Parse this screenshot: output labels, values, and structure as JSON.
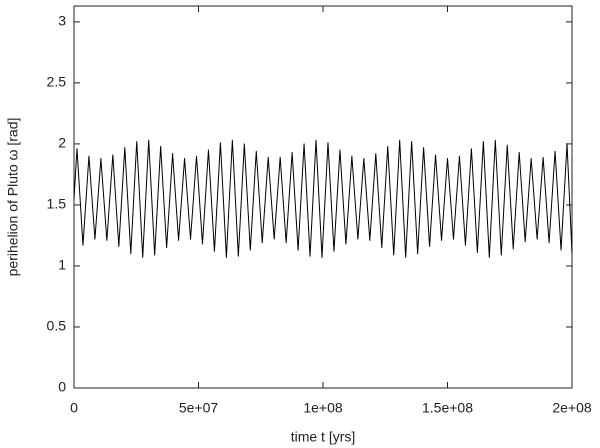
{
  "chart_data": {
    "type": "line",
    "x_label": "time t [yrs]",
    "y_label": "perihelion of Pluto ω [rad]",
    "xlim": [
      0,
      200000000
    ],
    "ylim": [
      0,
      3.13
    ],
    "xticks": [
      0,
      {
        "value": 50000000,
        "label": "5e+07"
      },
      {
        "value": 100000000,
        "label": "1e+08"
      },
      {
        "value": 150000000,
        "label": "1.5e+08"
      },
      {
        "value": 200000000,
        "label": "2e+08"
      }
    ],
    "yticks": [
      0,
      0.5,
      1,
      1.5,
      2,
      2.5,
      3
    ],
    "grid": false,
    "color": "#000000",
    "x": [
      0,
      1200000,
      3600000,
      6000000,
      8400000,
      10800000,
      13200000,
      15600000,
      18000000,
      20400000,
      22800000,
      25200000,
      27600000,
      30000000,
      32400000,
      34800000,
      37200000,
      39600000,
      42000000,
      44400000,
      46800000,
      49200000,
      51600000,
      54000000,
      56400000,
      58800000,
      61200000,
      63600000,
      66000000,
      68400000,
      70800000,
      73200000,
      75600000,
      78000000,
      80400000,
      82800000,
      85200000,
      87600000,
      90000000,
      92400000,
      94800000,
      97200000,
      99600000,
      102000000,
      104400000,
      106800000,
      109200000,
      111600000,
      114000000,
      116400000,
      118800000,
      121200000,
      123600000,
      126000000,
      128400000,
      130800000,
      133200000,
      135600000,
      138000000,
      140400000,
      142800000,
      145200000,
      147600000,
      150000000,
      152400000,
      154800000,
      157200000,
      159600000,
      162000000,
      164400000,
      166800000,
      169200000,
      171600000,
      174000000,
      176400000,
      178800000,
      181200000,
      183600000,
      186000000,
      188400000,
      190800000,
      193200000,
      195600000,
      198000000,
      200000000
    ],
    "values": [
      1.55,
      1.96,
      1.17,
      1.9,
      1.22,
      1.88,
      1.21,
      1.91,
      1.16,
      1.97,
      1.1,
      2.02,
      1.07,
      2.03,
      1.09,
      1.98,
      1.15,
      1.92,
      1.21,
      1.88,
      1.22,
      1.9,
      1.18,
      1.95,
      1.12,
      2.01,
      1.07,
      2.03,
      1.08,
      2.0,
      1.13,
      1.94,
      1.19,
      1.89,
      1.22,
      1.89,
      1.19,
      1.93,
      1.13,
      2.0,
      1.08,
      2.03,
      1.07,
      2.01,
      1.12,
      1.95,
      1.18,
      1.9,
      1.22,
      1.88,
      1.21,
      1.92,
      1.15,
      1.98,
      1.09,
      2.03,
      1.07,
      2.02,
      1.1,
      1.97,
      1.16,
      1.91,
      1.21,
      1.88,
      1.22,
      1.9,
      1.17,
      1.96,
      1.11,
      2.02,
      1.07,
      2.03,
      1.09,
      1.99,
      1.14,
      1.93,
      1.2,
      1.88,
      1.22,
      1.89,
      1.19,
      1.94,
      1.13,
      2.0,
      1.1
    ]
  }
}
